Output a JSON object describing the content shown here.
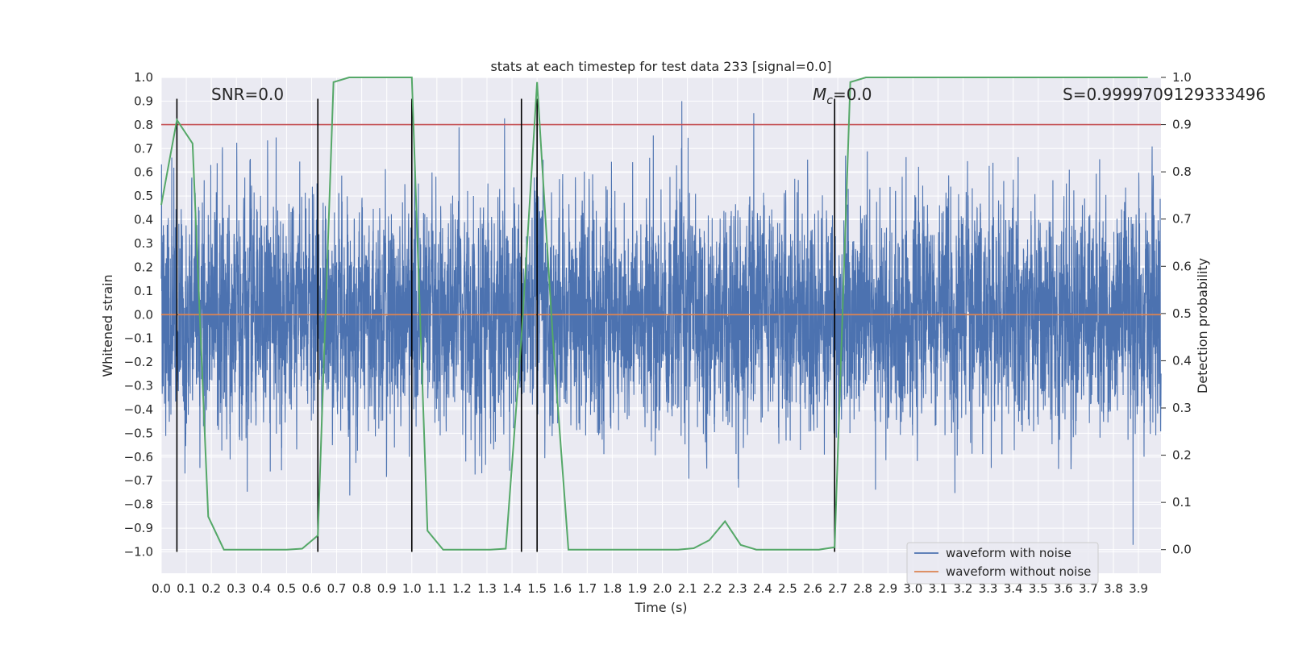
{
  "chart_data": {
    "type": "line",
    "title": "stats at each timestep for test data 233 [signal=0.0]",
    "xlabel": "Time (s)",
    "ylabel": "Whitened strain",
    "y2label": "Detection probability",
    "xlim": [
      0.0,
      3.99
    ],
    "ylim": [
      -1.09,
      1.0
    ],
    "y2lim": [
      -0.05,
      1.0
    ],
    "x_ticks": [
      "0.0",
      "0.1",
      "0.2",
      "0.3",
      "0.4",
      "0.5",
      "0.6",
      "0.7",
      "0.8",
      "0.9",
      "1.0",
      "1.1",
      "1.2",
      "1.3",
      "1.4",
      "1.5",
      "1.6",
      "1.7",
      "1.8",
      "1.9",
      "2.0",
      "2.1",
      "2.2",
      "2.3",
      "2.4",
      "2.5",
      "2.6",
      "2.7",
      "2.8",
      "2.9",
      "3.0",
      "3.1",
      "3.2",
      "3.3",
      "3.4",
      "3.5",
      "3.6",
      "3.7",
      "3.8",
      "3.9"
    ],
    "y_ticks": [
      "1.0",
      "0.9",
      "0.8",
      "0.7",
      "0.6",
      "0.5",
      "0.4",
      "0.3",
      "0.2",
      "0.1",
      "0.0",
      "−0.1",
      "−0.2",
      "−0.3",
      "−0.4",
      "−0.5",
      "−0.6",
      "−0.7",
      "−0.8",
      "−0.9",
      "−1.0"
    ],
    "y2_ticks": [
      "1.0",
      "0.9",
      "0.8",
      "0.7",
      "0.6",
      "0.5",
      "0.4",
      "0.3",
      "0.2",
      "0.1",
      "0.0"
    ],
    "annotations": {
      "snr": "SNR=0.0",
      "mc_symbol": "M",
      "mc_sub": "c",
      "mc_value": "=0.0",
      "s_value": "S=0.9999709129333496"
    },
    "series": [
      {
        "name": "waveform with noise",
        "color": "#4c72b0",
        "kind": "noise",
        "sample_rate_hz": 2048,
        "approx_range": [
          -1.0,
          0.9
        ],
        "approx_std": 0.28
      },
      {
        "name": "waveform without noise",
        "color": "#dd8452",
        "x": [
          0.0,
          3.99
        ],
        "y": [
          0.0,
          0.0
        ]
      },
      {
        "name": "detection probability",
        "color": "#55a868",
        "axis": "right",
        "x": [
          0.0,
          0.0625,
          0.125,
          0.1875,
          0.25,
          0.3125,
          0.375,
          0.4375,
          0.5,
          0.5625,
          0.625,
          0.6875,
          0.75,
          0.8125,
          0.875,
          0.9375,
          1.0,
          1.0625,
          1.125,
          1.1875,
          1.25,
          1.3125,
          1.375,
          1.4375,
          1.5,
          1.5625,
          1.625,
          1.6875,
          1.75,
          1.8125,
          1.875,
          1.9375,
          2.0,
          2.0625,
          2.125,
          2.1875,
          2.25,
          2.3125,
          2.375,
          2.4375,
          2.5,
          2.5625,
          2.625,
          2.6875,
          2.75,
          2.8125,
          2.875,
          2.9375,
          3.0,
          3.0625,
          3.125,
          3.1875,
          3.25,
          3.3125,
          3.375,
          3.4375,
          3.5,
          3.5625,
          3.625,
          3.6875,
          3.75,
          3.8125,
          3.875,
          3.9375
        ],
        "y": [
          0.73,
          0.91,
          0.86,
          0.07,
          0.0,
          0.0,
          0.0,
          0.0,
          0.0,
          0.002,
          0.03,
          0.99,
          1.0,
          1.0,
          1.0,
          1.0,
          1.0,
          0.04,
          0.0,
          0.0,
          0.0,
          0.0,
          0.002,
          0.45,
          0.99,
          0.45,
          0.0,
          0.0,
          0.0,
          0.0,
          0.0,
          0.0,
          0.0,
          0.0,
          0.003,
          0.02,
          0.06,
          0.01,
          0.0,
          0.0,
          0.0,
          0.0,
          0.0,
          0.005,
          0.99,
          1.0,
          1.0,
          1.0,
          1.0,
          1.0,
          1.0,
          1.0,
          1.0,
          1.0,
          1.0,
          1.0,
          1.0,
          1.0,
          1.0,
          1.0,
          1.0,
          1.0,
          1.0,
          1.0
        ]
      }
    ],
    "threshold": {
      "axis": "right",
      "value": 0.9,
      "color": "#c44e52"
    },
    "vlines": {
      "x": [
        0.0625,
        0.625,
        1.0,
        1.4375,
        1.5,
        2.6875
      ],
      "ymin": -1.0,
      "ymax": 0.91,
      "color": "#000000"
    },
    "legend": {
      "placement": "lower-right",
      "entries": [
        "waveform with noise",
        "waveform without noise"
      ]
    }
  },
  "colors": {
    "background": "#ffffff",
    "axes_face": "#eaeaf2",
    "grid": "#ffffff"
  }
}
